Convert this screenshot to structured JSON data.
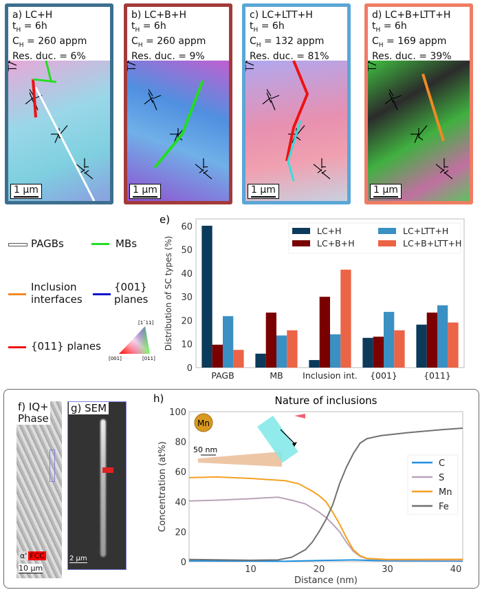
{
  "panels": [
    {
      "label": "a) LC+H",
      "tH": "6h",
      "CH": "260 appm",
      "res": "Res. duc. = 6%",
      "border": "#3d6f8e",
      "scale": "1 µm"
    },
    {
      "label": "b) LC+B+H",
      "tH": "6h",
      "CH": "260 appm",
      "res": "Res. duc. = 9%",
      "border": "#a33a3a",
      "scale": "1 µm"
    },
    {
      "label": "c) LC+LTT+H",
      "tH": "6h",
      "CH": "132 appm",
      "res": "Res. duc. = 81%",
      "border": "#5aa6d6",
      "scale": "1 µm"
    },
    {
      "label": "d) LC+B+LTT+H",
      "tH": "6h",
      "CH": "169 appm",
      "res": "Res. duc. = 39%",
      "border": "#ee7d63",
      "scale": "1 µm"
    }
  ],
  "legend": {
    "pagb": "PAGBs",
    "mb": "MBs",
    "incl1": "Inclusion",
    "incl2": "interfaces",
    "p001a": "{001}",
    "p001b": "planes",
    "p011": "{011} planes",
    "ipf": {
      "top": "[1¯11]",
      "left": "[001]",
      "right": "[011]"
    },
    "colors": {
      "pagb": "#ffffff",
      "mb": "#22dd22",
      "incl": "#f08a24",
      "p001": "#1010d0",
      "p011": "#ee1111"
    }
  },
  "insets": {
    "f_label1": "f) IQ+",
    "f_label2": "Phase",
    "alpha": "α'",
    "fcc": "FCC",
    "f_scale": "10 µm",
    "g_label": "g) SEM",
    "g_scale": "2 µm",
    "mn_label": "Mn",
    "apt_scale": "50 nm"
  },
  "chart_data": [
    {
      "type": "bar",
      "panel_label": "e)",
      "ylabel": "Distribution of SC types (%)",
      "ylim": [
        0,
        63
      ],
      "yticks": [
        0,
        10,
        20,
        30,
        40,
        50,
        60
      ],
      "categories": [
        "PAGB",
        "MB",
        "Inclusion int.",
        "{001}",
        "{011}"
      ],
      "legend_placement": "top-right",
      "series": [
        {
          "name": "LC+H",
          "color": "#0b3a5a",
          "values": [
            60.1,
            5.9,
            3.2,
            12.6,
            18.2
          ]
        },
        {
          "name": "LC+B+H",
          "color": "#7a0000",
          "values": [
            9.7,
            23.3,
            30.0,
            13.1,
            23.3
          ]
        },
        {
          "name": "LC+LTT+H",
          "color": "#3a90c2",
          "values": [
            21.8,
            13.6,
            14.1,
            23.6,
            26.4
          ]
        },
        {
          "name": "LC+B+LTT+H",
          "color": "#ec6446",
          "values": [
            7.5,
            15.8,
            41.5,
            15.8,
            19.1
          ]
        }
      ]
    },
    {
      "type": "line",
      "panel_label": "h)",
      "title": "Nature of inclusions",
      "xlabel": "Distance (nm)",
      "ylabel": "Concentration (at%)",
      "xlim": [
        1,
        41
      ],
      "ylim": [
        0,
        100
      ],
      "xticks": [
        10,
        20,
        30,
        40
      ],
      "yticks": [
        0,
        20,
        40,
        60,
        80,
        100
      ],
      "legend_placement": "center-right",
      "series": [
        {
          "name": "C",
          "color": "#1f8fe0",
          "x": [
            1,
            10,
            15,
            20,
            25,
            28,
            33,
            41
          ],
          "y": [
            0.6,
            0.4,
            0.3,
            0.8,
            1.2,
            0.8,
            0.6,
            0.5
          ]
        },
        {
          "name": "S",
          "color": "#b8a3b8",
          "x": [
            1,
            5,
            10,
            14,
            16,
            18,
            20,
            21,
            22,
            23,
            24,
            25,
            26,
            27,
            30,
            41
          ],
          "y": [
            40.5,
            41,
            42,
            43,
            41,
            38.5,
            33,
            29.5,
            25,
            20,
            13,
            7,
            3.5,
            2,
            1.2,
            1
          ]
        },
        {
          "name": "Mn",
          "color": "#f5a020",
          "x": [
            1,
            5,
            10,
            15,
            17,
            19,
            20,
            21,
            22,
            23,
            24,
            25,
            26,
            27,
            30,
            41
          ],
          "y": [
            56,
            56.5,
            55.5,
            54,
            52,
            47,
            44,
            40,
            33,
            25,
            16,
            8,
            4,
            2.2,
            1.5,
            1.6
          ]
        },
        {
          "name": "Fe",
          "color": "#707070",
          "x": [
            1,
            10,
            14,
            16,
            18,
            19,
            20,
            21,
            22,
            23,
            24,
            25,
            26,
            27,
            29,
            33,
            38,
            41
          ],
          "y": [
            1.5,
            1,
            1.2,
            3,
            8,
            13,
            20,
            28,
            38,
            52,
            63,
            72,
            79,
            82,
            84,
            86,
            88,
            89
          ]
        }
      ]
    }
  ]
}
